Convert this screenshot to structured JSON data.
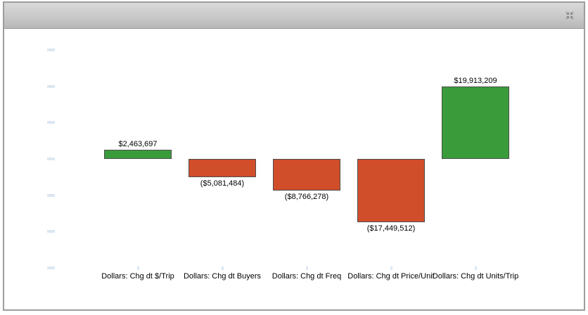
{
  "header": {
    "title": "",
    "collapse_icon": "collapse-arrows"
  },
  "colors": {
    "positive": "#3a9b3a",
    "negative": "#d14e2b",
    "bar_border": "#4d4d4d",
    "axis_tick": "#dce7f3",
    "panel_border": "#9d9d9d",
    "header_gradient_top": "#d9d9d9",
    "header_gradient_bottom": "#b7b7b7",
    "icon_gray": "#8a8a8a"
  },
  "chart_data": {
    "type": "bar",
    "subtype": "contribution-waterfall",
    "title": "",
    "xlabel": "",
    "ylabel": "",
    "categories": [
      "Dollars: Chg dt $/Trip",
      "Dollars: Chg dt Buyers",
      "Dollars: Chg dt Freq",
      "Dollars: Chg dt Price/Unit",
      "Dollars: Chg dt Units/Trip"
    ],
    "values": [
      2463697,
      -5081484,
      -8766278,
      -17449512,
      19913209
    ],
    "data_labels": [
      "$2,463,697",
      "($5,081,484)",
      "($8,766,278)",
      "($17,449,512)",
      "$19,913,209"
    ],
    "bar_colors": [
      "#3a9b3a",
      "#d14e2b",
      "#d14e2b",
      "#d14e2b",
      "#3a9b3a"
    ],
    "ylim": [
      -30000000,
      30000000
    ],
    "y_tick_interval": 10000000,
    "y_tick_labels_visible": false,
    "grid": false,
    "legend": false
  }
}
